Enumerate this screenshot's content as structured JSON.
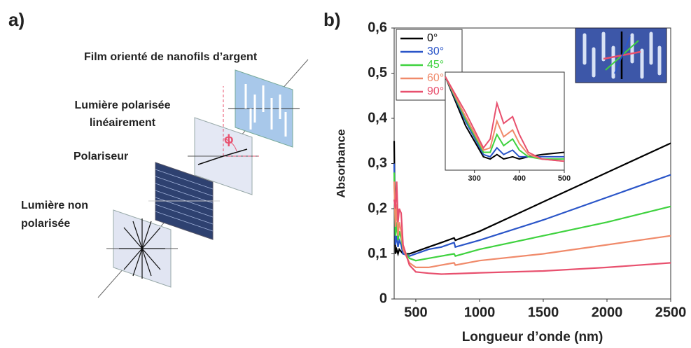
{
  "panels": {
    "a": "a)",
    "b": "b)"
  },
  "diagram": {
    "film": "Film orienté de nanofils d’argent",
    "linear_light": [
      "Lumière polarisée",
      "linéairement"
    ],
    "polarizer": "Polariseur",
    "unpolarized_light": [
      "Lumière non",
      "polarisée"
    ],
    "angle": "ϕ"
  },
  "chart_data": [
    {
      "type": "line",
      "x_label": "Longueur d’onde (nm)",
      "y_label": "Absorbance",
      "x": [
        330,
        340,
        350,
        360,
        370,
        385,
        400,
        450,
        500,
        600,
        700,
        800,
        810,
        1000,
        1500,
        2000,
        2500
      ],
      "series": [
        {
          "name": "0°",
          "color": "#000000",
          "values": [
            0.35,
            0.1,
            0.11,
            0.1,
            0.11,
            0.105,
            0.1,
            0.1,
            0.105,
            0.115,
            0.125,
            0.135,
            0.13,
            0.15,
            0.215,
            0.28,
            0.345
          ]
        },
        {
          "name": "30°",
          "color": "#2a55c8",
          "values": [
            0.3,
            0.12,
            0.14,
            0.115,
            0.13,
            0.12,
            0.1,
            0.095,
            0.1,
            0.11,
            0.115,
            0.125,
            0.115,
            0.13,
            0.175,
            0.225,
            0.275
          ]
        },
        {
          "name": "45°",
          "color": "#3fd23f",
          "values": [
            0.28,
            0.14,
            0.17,
            0.13,
            0.15,
            0.135,
            0.11,
            0.09,
            0.085,
            0.09,
            0.095,
            0.1,
            0.095,
            0.11,
            0.14,
            0.17,
            0.205
          ]
        },
        {
          "name": "60°",
          "color": "#f08a6a",
          "values": [
            0.26,
            0.16,
            0.21,
            0.14,
            0.17,
            0.15,
            0.11,
            0.08,
            0.07,
            0.07,
            0.075,
            0.08,
            0.075,
            0.085,
            0.1,
            0.12,
            0.14
          ]
        },
        {
          "name": "90°",
          "color": "#e8506e",
          "values": [
            0.22,
            0.2,
            0.26,
            0.17,
            0.2,
            0.19,
            0.12,
            0.075,
            0.06,
            0.057,
            0.055,
            0.056,
            0.056,
            0.058,
            0.062,
            0.07,
            0.08
          ]
        }
      ],
      "xlim": [
        330,
        2500
      ],
      "xticks": [
        500,
        1000,
        1500,
        2000,
        2500
      ],
      "ylim": [
        0,
        0.6
      ],
      "yticks": [
        0,
        {
          "value": 0.1,
          "label": "0,1"
        },
        {
          "value": 0.2,
          "label": "0,2"
        },
        {
          "value": 0.3,
          "label": "0,3"
        },
        {
          "value": 0.4,
          "label": "0,4"
        },
        {
          "value": 0.5,
          "label": "0,5"
        },
        {
          "value": 0.6,
          "label": "0,6"
        }
      ],
      "legend": "top-left"
    },
    {
      "type": "line",
      "x": [
        235,
        280,
        320,
        335,
        350,
        365,
        385,
        400,
        420,
        450,
        500
      ],
      "series": [
        {
          "color": "#000000",
          "values": [
            0.29,
            0.18,
            0.11,
            0.105,
            0.115,
            0.105,
            0.11,
            0.105,
            0.11,
            0.115,
            0.12
          ]
        },
        {
          "color": "#2a55c8",
          "values": [
            0.29,
            0.19,
            0.115,
            0.11,
            0.13,
            0.115,
            0.125,
            0.11,
            0.11,
            0.11,
            0.11
          ]
        },
        {
          "color": "#3fd23f",
          "values": [
            0.29,
            0.195,
            0.12,
            0.12,
            0.16,
            0.135,
            0.15,
            0.125,
            0.11,
            0.105,
            0.105
          ]
        },
        {
          "color": "#f08a6a",
          "values": [
            0.29,
            0.2,
            0.125,
            0.13,
            0.19,
            0.155,
            0.17,
            0.14,
            0.115,
            0.105,
            0.1
          ]
        },
        {
          "color": "#e8506e",
          "values": [
            0.29,
            0.21,
            0.13,
            0.15,
            0.23,
            0.185,
            0.2,
            0.16,
            0.12,
            0.105,
            0.1
          ]
        }
      ],
      "xlim": [
        235,
        500
      ],
      "xticks": [
        300,
        400,
        500
      ],
      "ylim": [
        0.08,
        0.3
      ]
    }
  ]
}
